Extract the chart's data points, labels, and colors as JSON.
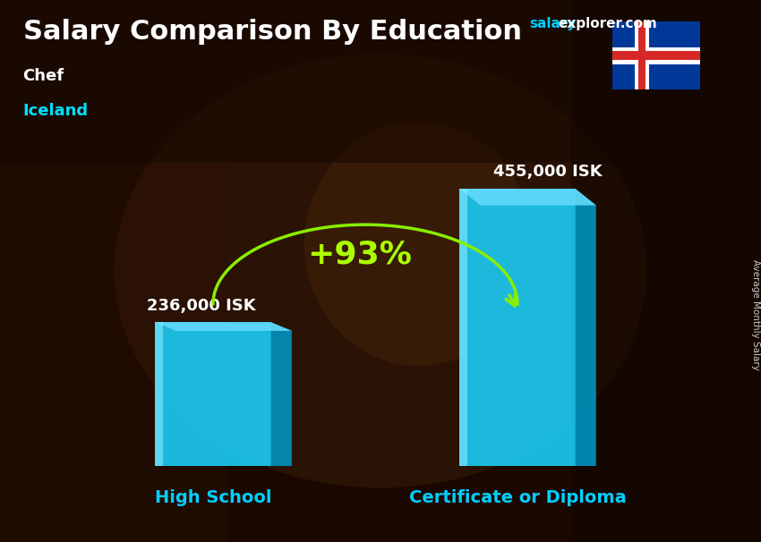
{
  "title_main": "Salary Comparison By Education",
  "subtitle_job": "Chef",
  "subtitle_country": "Iceland",
  "categories": [
    "High School",
    "Certificate or Diploma"
  ],
  "values": [
    236000,
    455000
  ],
  "value_labels": [
    "236,000 ISK",
    "455,000 ISK"
  ],
  "pct_change": "+93%",
  "bar_color_face": "#1BC8F0",
  "bar_color_light": "#80E8FF",
  "bar_color_dark": "#0090BB",
  "bar_color_top": "#60D8F8",
  "bg_top_color": "#2a1500",
  "bg_bottom_color": "#1a0800",
  "title_color": "#FFFFFF",
  "salary_text": "salary",
  "explorer_text": "explorer.com",
  "salary_color": "#00CFFF",
  "explorer_color": "#FFFFFF",
  "subtitle_job_color": "#FFFFFF",
  "subtitle_country_color": "#00DFFF",
  "label_color": "#FFFFFF",
  "category_color": "#00CFFF",
  "pct_color": "#AAFF00",
  "arrow_color": "#88EE00",
  "rotated_label": "Average Monthly Salary",
  "rotated_label_color": "#CCCCCC",
  "ylim": [
    0,
    560000
  ],
  "bar_width": 0.38,
  "bar_positions": [
    0.45,
    1.45
  ],
  "xlim": [
    -0.1,
    2.1
  ],
  "title_fontsize": 22,
  "subtitle_fontsize": 13,
  "label_fontsize": 13,
  "category_fontsize": 14,
  "pct_fontsize": 26
}
